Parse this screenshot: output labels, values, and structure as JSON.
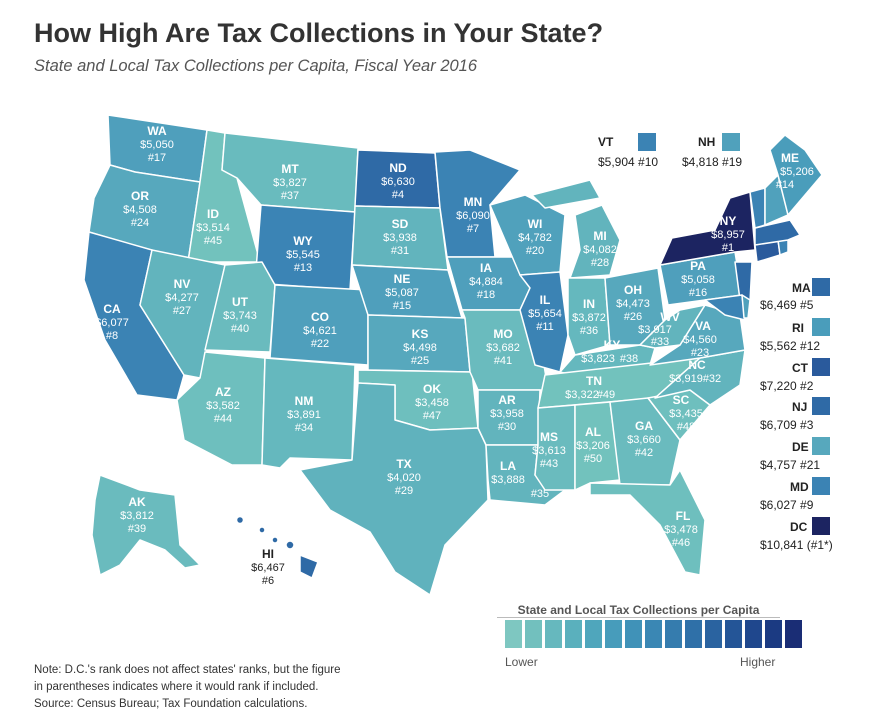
{
  "header": {
    "title": "How High Are Tax Collections in Your State?",
    "subtitle": "State and Local Tax Collections per Capita, Fiscal Year 2016"
  },
  "colors": {
    "light": "#72c2bd",
    "mid_light": "#5ab0bd",
    "mid": "#4a9dbb",
    "mid_dark": "#3b84b5",
    "dark": "#2f6aa6",
    "darkest": "#1f3a7a",
    "ny": "#1c2461"
  },
  "states": {
    "WA": {
      "abbr": "WA",
      "value": "$5,050",
      "rank": "#17"
    },
    "OR": {
      "abbr": "OR",
      "value": "$4,508",
      "rank": "#24"
    },
    "CA": {
      "abbr": "CA",
      "value": "$6,077",
      "rank": "#8"
    },
    "ID": {
      "abbr": "ID",
      "value": "$3,514",
      "rank": "#45"
    },
    "NV": {
      "abbr": "NV",
      "value": "$4,277",
      "rank": "#27"
    },
    "MT": {
      "abbr": "MT",
      "value": "$3,827",
      "rank": "#37"
    },
    "WY": {
      "abbr": "WY",
      "value": "$5,545",
      "rank": "#13"
    },
    "UT": {
      "abbr": "UT",
      "value": "$3,743",
      "rank": "#40"
    },
    "AZ": {
      "abbr": "AZ",
      "value": "$3,582",
      "rank": "#44"
    },
    "CO": {
      "abbr": "CO",
      "value": "$4,621",
      "rank": "#22"
    },
    "NM": {
      "abbr": "NM",
      "value": "$3,891",
      "rank": "#34"
    },
    "ND": {
      "abbr": "ND",
      "value": "$6,630",
      "rank": "#4"
    },
    "SD": {
      "abbr": "SD",
      "value": "$3,938",
      "rank": "#31"
    },
    "NE": {
      "abbr": "NE",
      "value": "$5,087",
      "rank": "#15"
    },
    "KS": {
      "abbr": "KS",
      "value": "$4,498",
      "rank": "#25"
    },
    "OK": {
      "abbr": "OK",
      "value": "$3,458",
      "rank": "#47"
    },
    "TX": {
      "abbr": "TX",
      "value": "$4,020",
      "rank": "#29"
    },
    "MN": {
      "abbr": "MN",
      "value": "$6,090",
      "rank": "#7"
    },
    "IA": {
      "abbr": "IA",
      "value": "$4,884",
      "rank": "#18"
    },
    "MO": {
      "abbr": "MO",
      "value": "$3,682",
      "rank": "#41"
    },
    "AR": {
      "abbr": "AR",
      "value": "$3,958",
      "rank": "#30"
    },
    "LA": {
      "abbr": "LA",
      "value": "$3,888",
      "rank": "#35"
    },
    "WI": {
      "abbr": "WI",
      "value": "$4,782",
      "rank": "#20"
    },
    "IL": {
      "abbr": "IL",
      "value": "$5,654",
      "rank": "#11"
    },
    "MI": {
      "abbr": "MI",
      "value": "$4,082",
      "rank": "#28"
    },
    "IN": {
      "abbr": "IN",
      "value": "$3,872",
      "rank": "#36"
    },
    "OH": {
      "abbr": "OH",
      "value": "$4,473",
      "rank": "#26"
    },
    "KY": {
      "abbr": "KY",
      "value": "$3,823",
      "rank": "#38"
    },
    "TN": {
      "abbr": "TN",
      "value": "$3,322",
      "rank": "#49"
    },
    "MS": {
      "abbr": "MS",
      "value": "$3,613",
      "rank": "#43"
    },
    "AL": {
      "abbr": "AL",
      "value": "$3,206",
      "rank": "#50"
    },
    "GA": {
      "abbr": "GA",
      "value": "$3,660",
      "rank": "#42"
    },
    "FL": {
      "abbr": "FL",
      "value": "$3,478",
      "rank": "#46"
    },
    "SC": {
      "abbr": "SC",
      "value": "$3,435",
      "rank": "#48"
    },
    "NC": {
      "abbr": "NC",
      "value": "$3,919",
      "rank": "#32"
    },
    "VA": {
      "abbr": "VA",
      "value": "$4,560",
      "rank": "#23"
    },
    "WV": {
      "abbr": "WV",
      "value": "$3,917",
      "rank": "#33"
    },
    "PA": {
      "abbr": "PA",
      "value": "$5,058",
      "rank": "#16"
    },
    "NY": {
      "abbr": "NY",
      "value": "$8,957",
      "rank": "#1"
    },
    "ME": {
      "abbr": "ME",
      "value": "$5,206",
      "rank": "#14"
    },
    "AK": {
      "abbr": "AK",
      "value": "$3,812",
      "rank": "#39"
    },
    "HI": {
      "abbr": "HI",
      "value": "$6,467",
      "rank": "#6"
    }
  },
  "side_states": {
    "VT": {
      "abbr": "VT",
      "text": "$5,904  #10"
    },
    "NH": {
      "abbr": "NH",
      "text": "$4,818  #19"
    },
    "MA": {
      "abbr": "MA",
      "text": "$6,469  #5"
    },
    "RI": {
      "abbr": "RI",
      "text": "$5,562  #12"
    },
    "CT": {
      "abbr": "CT",
      "text": "$7,220  #2"
    },
    "NJ": {
      "abbr": "NJ",
      "text": "$6,709  #3"
    },
    "DE": {
      "abbr": "DE",
      "text": "$4,757 #21"
    },
    "MD": {
      "abbr": "MD",
      "text": "$6,027  #9"
    },
    "DC": {
      "abbr": "DC",
      "text": "$10,841 (#1*)"
    }
  },
  "legend": {
    "title": "State and Local Tax Collections per Capita",
    "low": "Lower",
    "high": "Higher",
    "scale": [
      "#7ec7c1",
      "#72c0be",
      "#66b8be",
      "#5ab0bd",
      "#4fa6bc",
      "#479cbb",
      "#4092b8",
      "#3a87b4",
      "#357cae",
      "#2f70a8",
      "#2a63a0",
      "#245597",
      "#1f478d",
      "#1b3a82",
      "#1a2d75"
    ]
  },
  "notes": {
    "line1": "Note: D.C.'s rank does not affect states' ranks, but the figure",
    "line2": "in parentheses indicates where it would rank if included.",
    "line3": "Source: Census Bureau; Tax Foundation calculations."
  }
}
